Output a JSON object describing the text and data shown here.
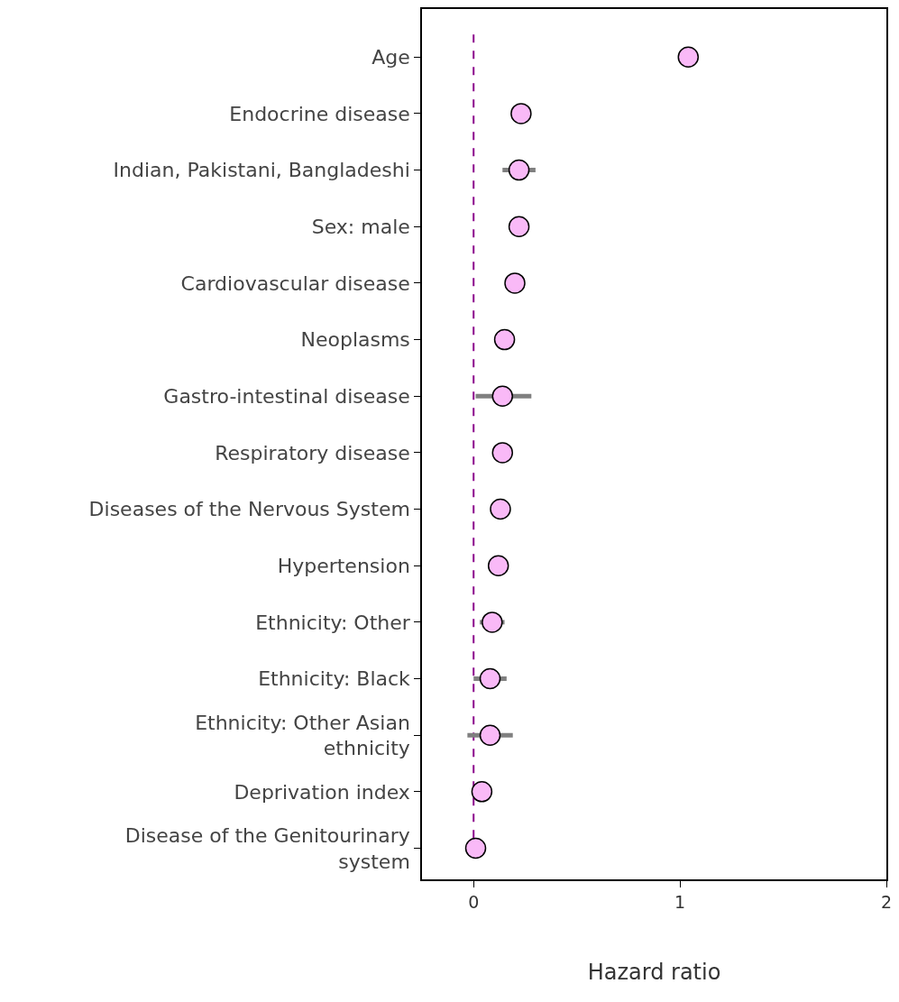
{
  "chart_data": {
    "type": "scatter",
    "xlabel": "Hazard ratio",
    "categories": [
      "Age",
      "Endocrine disease",
      "Indian, Pakistani, Bangladeshi",
      "Sex: male",
      "Cardiovascular disease",
      "Neoplasms",
      "Gastro-intestinal disease",
      "Respiratory disease",
      "Diseases of the Nervous System",
      "Hypertension",
      "Ethnicity: Other",
      "Ethnicity: Black",
      "Ethnicity: Other Asian\nethnicity",
      "Deprivation index",
      "Disease of the Genitourinary\nsystem"
    ],
    "orientation": "horizontal",
    "series": [
      {
        "color": "#f9b9f7",
        "values": [
          1.04,
          0.23,
          0.22,
          0.22,
          0.2,
          0.15,
          0.14,
          0.14,
          0.13,
          0.12,
          0.09,
          0.08,
          0.08,
          0.04,
          0.01
        ],
        "errors": [
          null,
          null,
          [
            0.14,
            0.3
          ],
          null,
          null,
          null,
          [
            0.01,
            0.28
          ],
          null,
          null,
          null,
          [
            0.03,
            0.15
          ],
          [
            0.0,
            0.16
          ],
          [
            -0.03,
            0.19
          ],
          null,
          null
        ]
      }
    ],
    "xlim": [
      -0.25,
      2
    ],
    "xticks": [
      0,
      1,
      2
    ],
    "marker": "circle",
    "grid": false,
    "ref_lines": [
      {
        "axis": "x",
        "value": 0,
        "color": "#8b008b",
        "line_style": "dashed"
      }
    ]
  }
}
